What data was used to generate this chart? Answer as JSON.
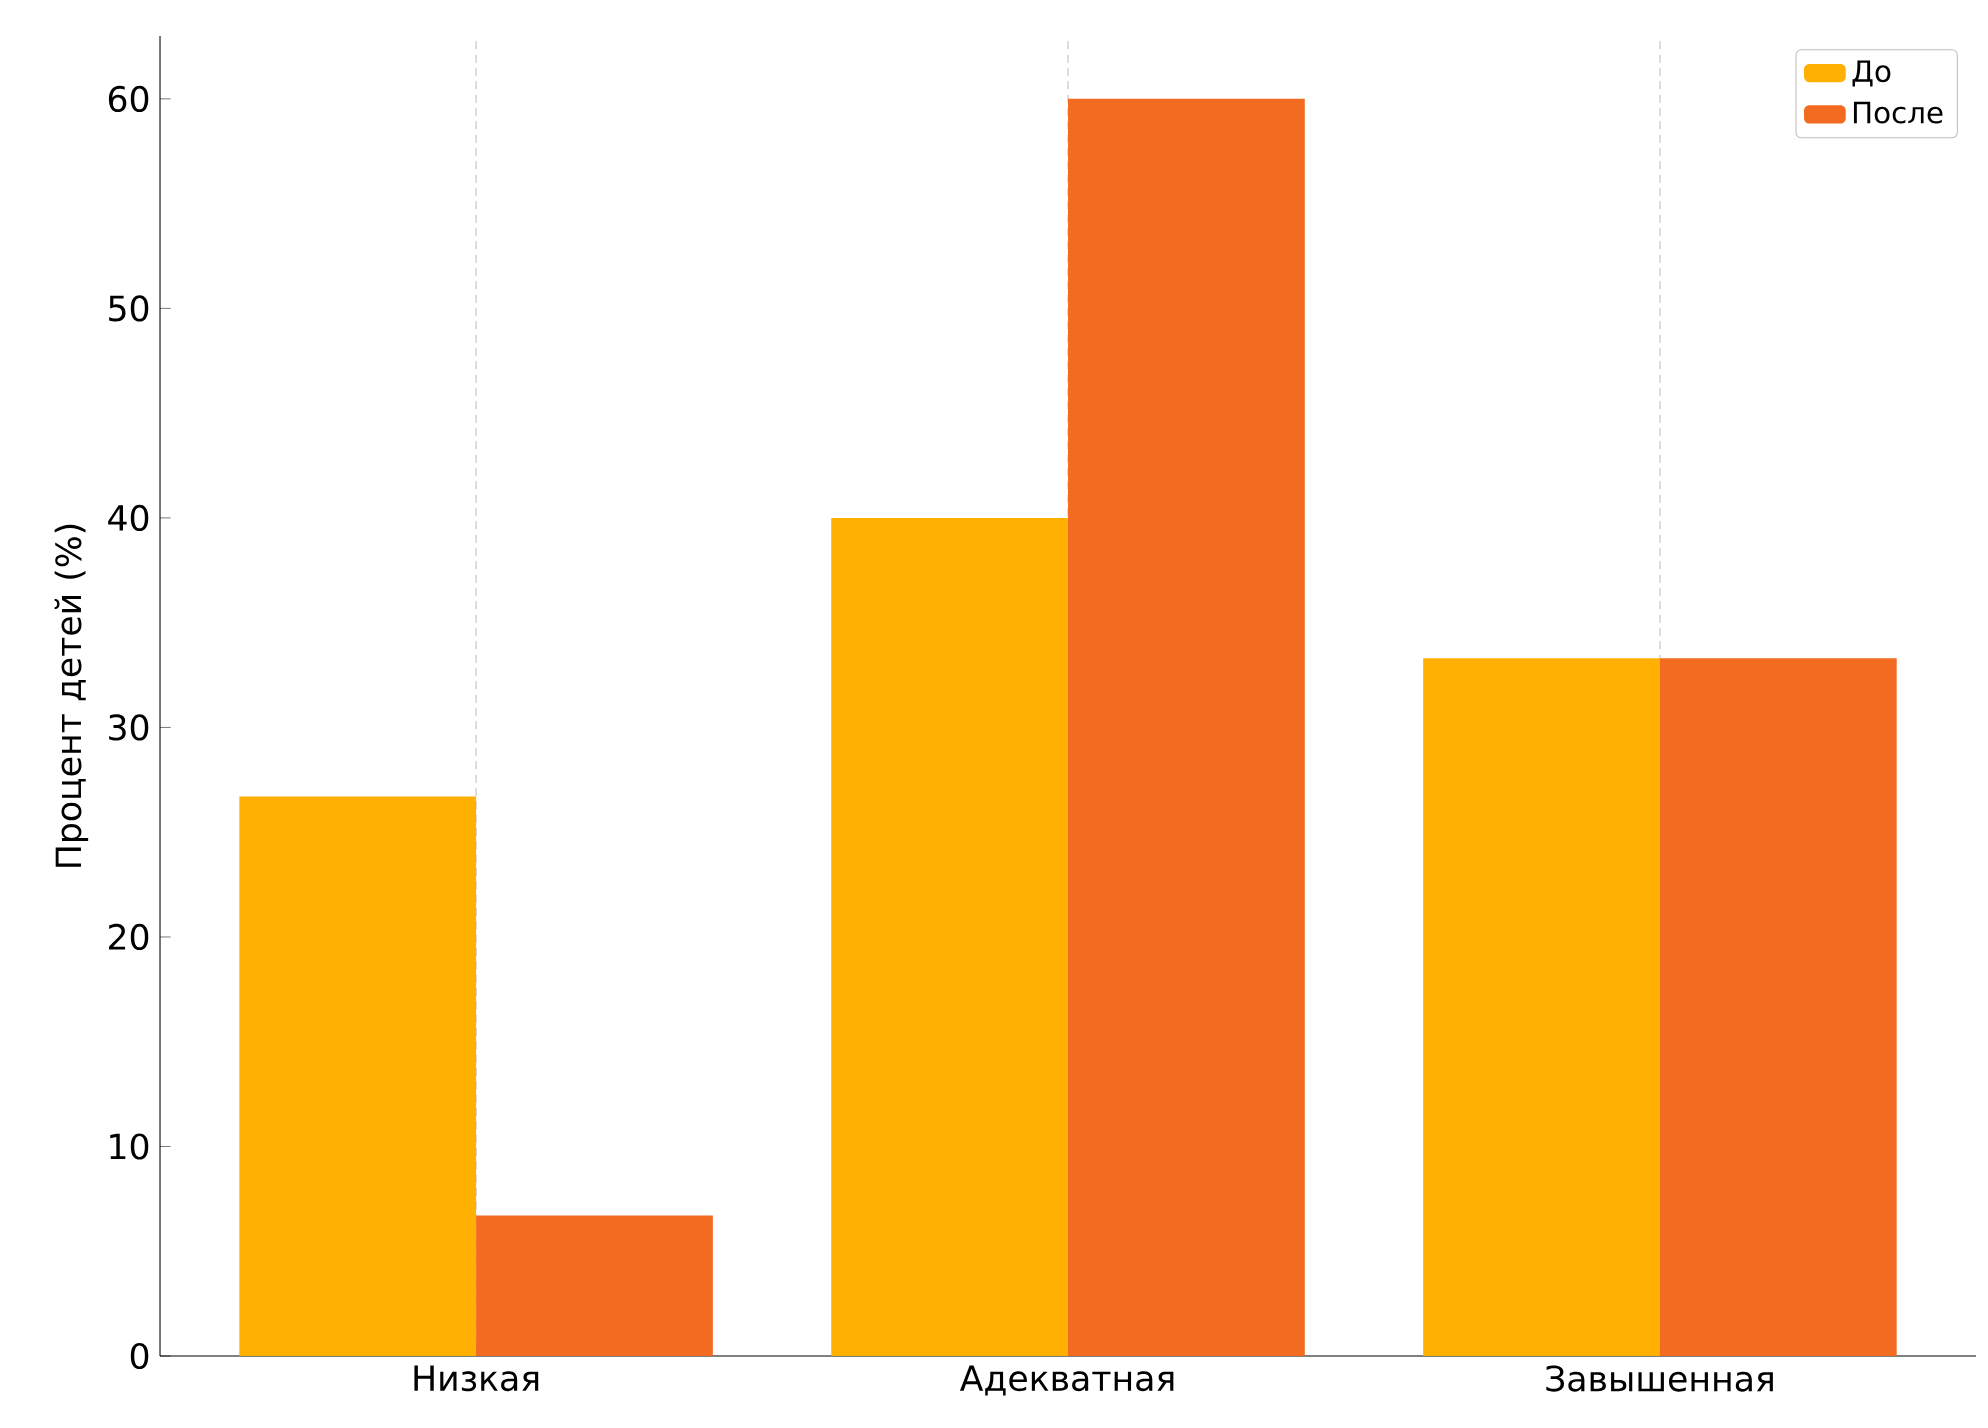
{
  "chart_data": {
    "type": "bar",
    "ylabel": "Процент детей (%)",
    "categories": [
      "Низкая",
      "Адекватная",
      "Завышенная"
    ],
    "series": [
      {
        "name": "До",
        "color": "#ffb000",
        "values": [
          26.7,
          40,
          33.3
        ]
      },
      {
        "name": "После",
        "color": "#f26b21",
        "values": [
          6.7,
          60,
          33.3
        ]
      }
    ],
    "ylim": [
      0,
      63
    ],
    "yticks": [
      0,
      10,
      20,
      30,
      40,
      50,
      60
    ],
    "grid": "x",
    "legend": "top right"
  }
}
